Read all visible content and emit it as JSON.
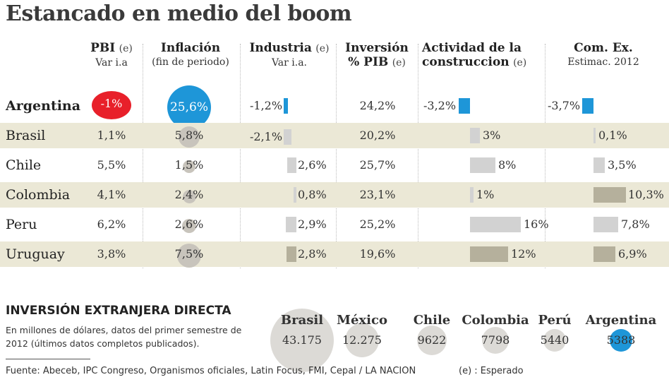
{
  "title": "Estancado en medio del boom",
  "headers": {
    "pbi": {
      "name": "PBI",
      "suffix": "(e)",
      "sub": "Var i.a"
    },
    "inflacion": {
      "name": "Inflación",
      "sub": "(fin de periodo)"
    },
    "industria": {
      "name": "Industria",
      "suffix": "(e)",
      "sub": "Var i.a."
    },
    "inversion": {
      "line1": "Inversión",
      "line2": "% PIB",
      "suffix": "(e)"
    },
    "construccion": {
      "line1": "Actividad de la",
      "line2": "construccion",
      "suffix": "(e)"
    },
    "comex": {
      "name": "Com. Ex.",
      "sub": "Estimac. 2012"
    }
  },
  "colors": {
    "accent": "#1e96d8",
    "negative": "#e8202a",
    "band": "#ebe8d6",
    "grey_bubble": "#c8c4bc",
    "bar_light": "#d2d2d2",
    "bar_dark": "#b5b09c"
  },
  "chart_data": {
    "type": "table",
    "title": "Estancado en medio del boom",
    "columns": [
      "PBI (e) Var i.a",
      "Inflación (fin de periodo)",
      "Industria (e) Var i.a.",
      "Inversión % PIB (e)",
      "Actividad de la construccion (e)",
      "Com. Ex. Estimac. 2012"
    ],
    "rows": [
      {
        "country": "Argentina",
        "pbi": -1,
        "pbi_label": "-1%",
        "inflacion": 25.6,
        "inflacion_label": "25,6%",
        "industria": -1.2,
        "industria_label": "-1,2%",
        "inversion": 24.2,
        "inversion_label": "24,2%",
        "construccion": -3.2,
        "construccion_label": "-3,2%",
        "comex": -3.7,
        "comex_label": "-3,7%"
      },
      {
        "country": "Brasil",
        "pbi": 1.1,
        "pbi_label": "1,1%",
        "inflacion": 5.8,
        "inflacion_label": "5,8%",
        "industria": -2.1,
        "industria_label": "-2,1%",
        "inversion": 20.2,
        "inversion_label": "20,2%",
        "construccion": 3,
        "construccion_label": "3%",
        "comex": 0.1,
        "comex_label": "0,1%"
      },
      {
        "country": "Chile",
        "pbi": 5.5,
        "pbi_label": "5,5%",
        "inflacion": 1.5,
        "inflacion_label": "1,5%",
        "industria": 2.6,
        "industria_label": "2,6%",
        "inversion": 25.7,
        "inversion_label": "25,7%",
        "construccion": 8,
        "construccion_label": "8%",
        "comex": 3.5,
        "comex_label": "3,5%"
      },
      {
        "country": "Colombia",
        "pbi": 4.1,
        "pbi_label": "4,1%",
        "inflacion": 2.4,
        "inflacion_label": "2,4%",
        "industria": 0.8,
        "industria_label": "0,8%",
        "inversion": 23.1,
        "inversion_label": "23,1%",
        "construccion": 1,
        "construccion_label": "1%",
        "comex": 10.3,
        "comex_label": "10,3%"
      },
      {
        "country": "Peru",
        "pbi": 6.2,
        "pbi_label": "6,2%",
        "inflacion": 2.6,
        "inflacion_label": "2,6%",
        "industria": 2.9,
        "industria_label": "2,9%",
        "inversion": 25.2,
        "inversion_label": "25,2%",
        "construccion": 16,
        "construccion_label": "16%",
        "comex": 7.8,
        "comex_label": "7,8%"
      },
      {
        "country": "Uruguay",
        "pbi": 3.8,
        "pbi_label": "3,8%",
        "inflacion": 7.5,
        "inflacion_label": "7,5%",
        "industria": 2.8,
        "industria_label": "2,8%",
        "inversion": 19.6,
        "inversion_label": "19,6%",
        "construccion": 12,
        "construccion_label": "12%",
        "comex": 6.9,
        "comex_label": "6,9%"
      }
    ],
    "fdi": {
      "title": "INVERSIÓN EXTRANJERA DIRECTA",
      "description": "En millones de dólares, datos del primer semestre de 2012 (últimos datos completos publicados).",
      "unit": "millones de dólares",
      "items": [
        {
          "country": "Brasil",
          "value": 43175,
          "label": "43.175"
        },
        {
          "country": "México",
          "value": 12275,
          "label": "12.275"
        },
        {
          "country": "Chile",
          "value": 9622,
          "label": "9622"
        },
        {
          "country": "Colombia",
          "value": 7798,
          "label": "7798"
        },
        {
          "country": "Perú",
          "value": 5440,
          "label": "5440"
        },
        {
          "country": "Argentina",
          "value": 5388,
          "label": "5388"
        }
      ]
    }
  },
  "footer": {
    "source": "Fuente: Abeceb, IPC Congreso, Organismos oficiales, Latin Focus, FMI, Cepal / LA NACION",
    "note": "(e) : Esperado"
  }
}
